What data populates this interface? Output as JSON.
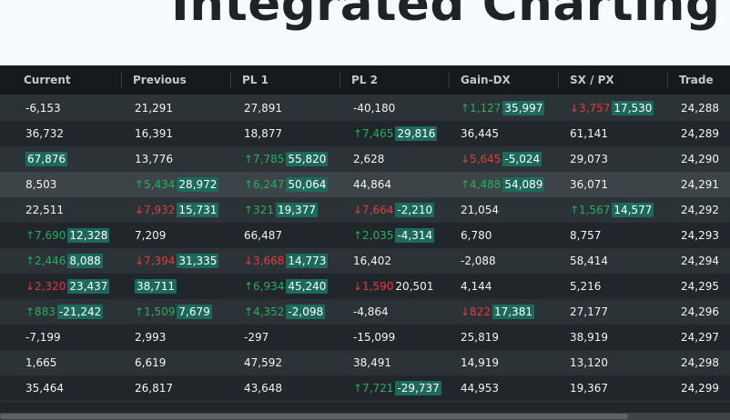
{
  "page": {
    "title": "Integrated Charting"
  },
  "columns": [
    "Current",
    "Previous",
    "PL 1",
    "PL 2",
    "Gain-DX",
    "SX / PX",
    "Trade"
  ],
  "rows": [
    [
      {
        "v": "-6,153"
      },
      {
        "v": "21,291"
      },
      {
        "v": "27,891"
      },
      {
        "v": "-40,180"
      },
      {
        "v": "35,997",
        "c": "↑1,127",
        "d": "up",
        "f": true
      },
      {
        "v": "17,530",
        "c": "↓3,757",
        "d": "down",
        "f": true
      },
      {
        "v": "24,288"
      }
    ],
    [
      {
        "v": "36,732"
      },
      {
        "v": "16,391"
      },
      {
        "v": "18,877"
      },
      {
        "v": "29,816",
        "c": "↑7,465",
        "d": "up",
        "f": true
      },
      {
        "v": "36,445"
      },
      {
        "v": "61,141"
      },
      {
        "v": "24,289"
      }
    ],
    [
      {
        "v": "67,876",
        "f": true
      },
      {
        "v": "13,776"
      },
      {
        "v": "55,820",
        "c": "↑7,785",
        "d": "up",
        "f": true
      },
      {
        "v": "2,628"
      },
      {
        "v": "-5,024",
        "c": "↓5,645",
        "d": "down",
        "f": true
      },
      {
        "v": "29,073"
      },
      {
        "v": "24,290"
      }
    ],
    [
      {
        "v": "8,503"
      },
      {
        "v": "28,972",
        "c": "↑5,434",
        "d": "up",
        "f": true
      },
      {
        "v": "50,064",
        "c": "↑6,247",
        "d": "up",
        "f": true
      },
      {
        "v": "44,864"
      },
      {
        "v": "54,089",
        "c": "↑4,488",
        "d": "up",
        "f": true
      },
      {
        "v": "36,071"
      },
      {
        "v": "24,291"
      }
    ],
    [
      {
        "v": "22,511"
      },
      {
        "v": "15,731",
        "c": "↓7,932",
        "d": "down",
        "f": true
      },
      {
        "v": "19,377",
        "c": "↑321",
        "d": "up",
        "f": true
      },
      {
        "v": "-2,210",
        "c": "↓7,664",
        "d": "down",
        "f": true
      },
      {
        "v": "21,054"
      },
      {
        "v": "14,577",
        "c": "↑1,567",
        "d": "up",
        "f": true
      },
      {
        "v": "24,292"
      }
    ],
    [
      {
        "v": "12,328",
        "c": "↑7,690",
        "d": "up",
        "f": true
      },
      {
        "v": "7,209"
      },
      {
        "v": "66,487"
      },
      {
        "v": "-4,314",
        "c": "↑2,035",
        "d": "up",
        "f": true
      },
      {
        "v": "6,780"
      },
      {
        "v": "8,757"
      },
      {
        "v": "24,293"
      }
    ],
    [
      {
        "v": "8,088",
        "c": "↑2,446",
        "d": "up",
        "f": true
      },
      {
        "v": "31,335",
        "c": "↓7,394",
        "d": "down",
        "f": true
      },
      {
        "v": "14,773",
        "c": "↓3,668",
        "d": "down",
        "f": true
      },
      {
        "v": "16,402"
      },
      {
        "v": "-2,088"
      },
      {
        "v": "58,414"
      },
      {
        "v": "24,294"
      }
    ],
    [
      {
        "v": "23,437",
        "c": "↓2,320",
        "d": "down",
        "f": true
      },
      {
        "v": "38,711",
        "f": true
      },
      {
        "v": "45,240",
        "c": "↑6,934",
        "d": "up",
        "f": true
      },
      {
        "v": "20,501",
        "c": "↓1,590",
        "d": "down"
      },
      {
        "v": "4,144"
      },
      {
        "v": "5,216"
      },
      {
        "v": "24,295"
      }
    ],
    [
      {
        "v": "-21,242",
        "c": "↑883",
        "d": "up",
        "f": true
      },
      {
        "v": "7,679",
        "c": "↑1,509",
        "d": "up",
        "f": true
      },
      {
        "v": "-2,098",
        "c": "↑4,352",
        "d": "up",
        "f": true
      },
      {
        "v": "-4,864"
      },
      {
        "v": "17,381",
        "c": "↓822",
        "d": "down",
        "f": true
      },
      {
        "v": "27,177"
      },
      {
        "v": "24,296"
      }
    ],
    [
      {
        "v": "-7,199"
      },
      {
        "v": "2,993"
      },
      {
        "v": "-297"
      },
      {
        "v": "-15,099"
      },
      {
        "v": "25,819"
      },
      {
        "v": "38,919"
      },
      {
        "v": "24,297"
      }
    ],
    [
      {
        "v": "1,665"
      },
      {
        "v": "6,619"
      },
      {
        "v": "47,592"
      },
      {
        "v": "38,491"
      },
      {
        "v": "14,919"
      },
      {
        "v": "13,120"
      },
      {
        "v": "24,298"
      }
    ],
    [
      {
        "v": "35,464"
      },
      {
        "v": "26,817"
      },
      {
        "v": "43,648"
      },
      {
        "v": "-29,737",
        "c": "↑7,721",
        "d": "up",
        "f": true
      },
      {
        "v": "44,953"
      },
      {
        "v": "19,367"
      },
      {
        "v": "24,299"
      }
    ]
  ],
  "colors": {
    "up": "#27ae60",
    "down": "#e63a3a",
    "flash": "#1c6a5c"
  }
}
